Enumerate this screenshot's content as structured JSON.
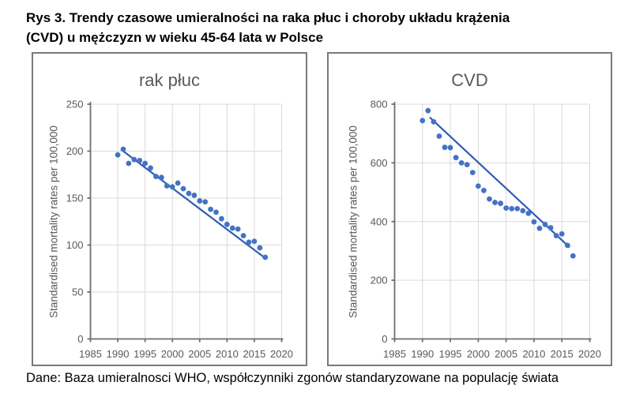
{
  "title": {
    "line1": "Rys 3. Trendy czasowe umieralności na raka płuc i choroby układu krążenia",
    "line2": "(CVD) u mężczyzn w wieku 45-64 lata w Polsce"
  },
  "caption": "Dane: Baza umieralnosci WHO, współczynniki zgonów standaryzowane na populację świata",
  "colors": {
    "marker": "#4472c4",
    "trendline": "#2f5cb3",
    "grid": "#d9d9d9",
    "axis": "#6e6e6e",
    "tick_label": "#595959",
    "chart_title": "#595959",
    "panel_border": "#7a7a7a"
  },
  "chart_data": [
    {
      "type": "scatter",
      "title": "rak płuc",
      "xlabel": "",
      "ylabel": "Standardised mortality rates per 100,000",
      "xlim": [
        1985,
        2020
      ],
      "ylim": [
        0,
        250
      ],
      "xticks": [
        1985,
        1990,
        1995,
        2000,
        2005,
        2010,
        2015,
        2020
      ],
      "yticks": [
        0,
        50,
        100,
        150,
        200,
        250
      ],
      "grid": true,
      "legend": "none",
      "x": [
        1990,
        1991,
        1992,
        1993,
        1994,
        1995,
        1996,
        1997,
        1998,
        1999,
        2000,
        2001,
        2002,
        2003,
        2004,
        2005,
        2006,
        2007,
        2008,
        2009,
        2010,
        2011,
        2012,
        2013,
        2014,
        2015,
        2016,
        2017
      ],
      "values": [
        196,
        202,
        187,
        191,
        190,
        187,
        182,
        173,
        172,
        163,
        162,
        166,
        160,
        155,
        153,
        147,
        146,
        138,
        135,
        128,
        122,
        118,
        117,
        110,
        103,
        104,
        97,
        87
      ],
      "trendline": {
        "x1": 1991,
        "y1": 200,
        "x2": 2017,
        "y2": 86
      }
    },
    {
      "type": "scatter",
      "title": "CVD",
      "xlabel": "",
      "ylabel": "Standardised mortality rates per 100,000",
      "xlim": [
        1985,
        2020
      ],
      "ylim": [
        0,
        800
      ],
      "xticks": [
        1985,
        1990,
        1995,
        2000,
        2005,
        2010,
        2015,
        2020
      ],
      "yticks": [
        0,
        200,
        400,
        600,
        800
      ],
      "grid": true,
      "legend": "none",
      "x": [
        1990,
        1991,
        1992,
        1993,
        1994,
        1995,
        1996,
        1997,
        1998,
        1999,
        2000,
        2001,
        2002,
        2003,
        2004,
        2005,
        2006,
        2007,
        2008,
        2009,
        2010,
        2011,
        2012,
        2013,
        2014,
        2015,
        2016,
        2017
      ],
      "values": [
        744,
        778,
        740,
        691,
        653,
        652,
        618,
        600,
        594,
        567,
        521,
        506,
        477,
        465,
        462,
        446,
        444,
        444,
        437,
        428,
        399,
        377,
        390,
        379,
        352,
        358,
        319,
        283
      ],
      "trendline": {
        "x1": 1991.3,
        "y1": 755,
        "x2": 2016.4,
        "y2": 312
      }
    }
  ]
}
